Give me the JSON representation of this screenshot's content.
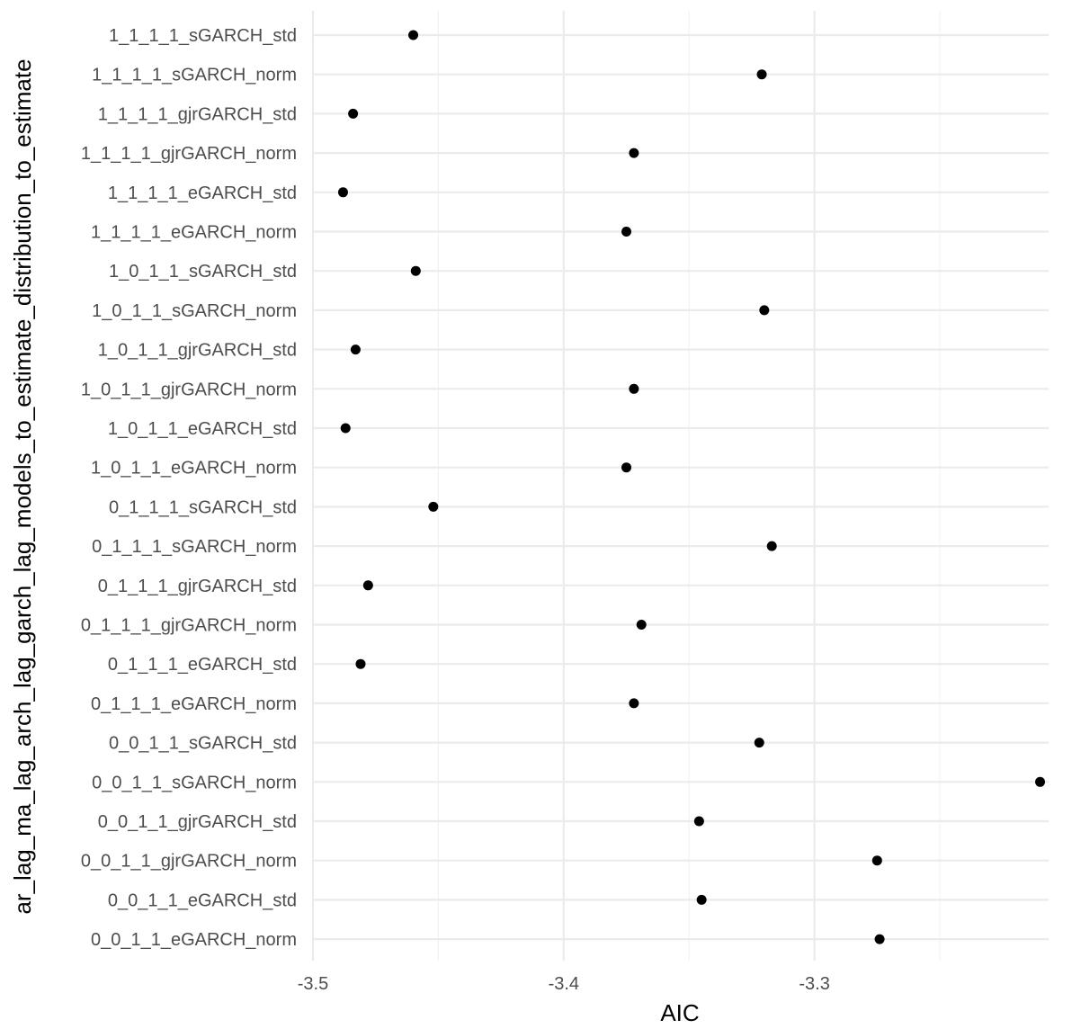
{
  "chart_data": {
    "type": "scatter",
    "xlabel": "AIC",
    "ylabel": "ar_lag_ma_lag_arch_lag_garch_lag_models_to_estimate_distribution_to_estimate",
    "xlim": [
      -3.5,
      -3.205
    ],
    "x_ticks": [
      -3.5,
      -3.4,
      -3.3
    ],
    "x_tick_labels": [
      "-3.5",
      "-3.4",
      "-3.3"
    ],
    "grid": true,
    "point_color": "#000000",
    "categories": [
      "1_1_1_1_sGARCH_std",
      "1_1_1_1_sGARCH_norm",
      "1_1_1_1_gjrGARCH_std",
      "1_1_1_1_gjrGARCH_norm",
      "1_1_1_1_eGARCH_std",
      "1_1_1_1_eGARCH_norm",
      "1_0_1_1_sGARCH_std",
      "1_0_1_1_sGARCH_norm",
      "1_0_1_1_gjrGARCH_std",
      "1_0_1_1_gjrGARCH_norm",
      "1_0_1_1_eGARCH_std",
      "1_0_1_1_eGARCH_norm",
      "0_1_1_1_sGARCH_std",
      "0_1_1_1_sGARCH_norm",
      "0_1_1_1_gjrGARCH_std",
      "0_1_1_1_gjrGARCH_norm",
      "0_1_1_1_eGARCH_std",
      "0_1_1_1_eGARCH_norm",
      "0_0_1_1_sGARCH_std",
      "0_0_1_1_sGARCH_norm",
      "0_0_1_1_gjrGARCH_std",
      "0_0_1_1_gjrGARCH_norm",
      "0_0_1_1_eGARCH_std",
      "0_0_1_1_eGARCH_norm"
    ],
    "values": [
      -3.46,
      -3.321,
      -3.484,
      -3.372,
      -3.488,
      -3.375,
      -3.459,
      -3.32,
      -3.483,
      -3.372,
      -3.487,
      -3.375,
      -3.452,
      -3.317,
      -3.478,
      -3.369,
      -3.481,
      -3.372,
      -3.322,
      -3.21,
      -3.346,
      -3.275,
      -3.345,
      -3.274
    ]
  }
}
